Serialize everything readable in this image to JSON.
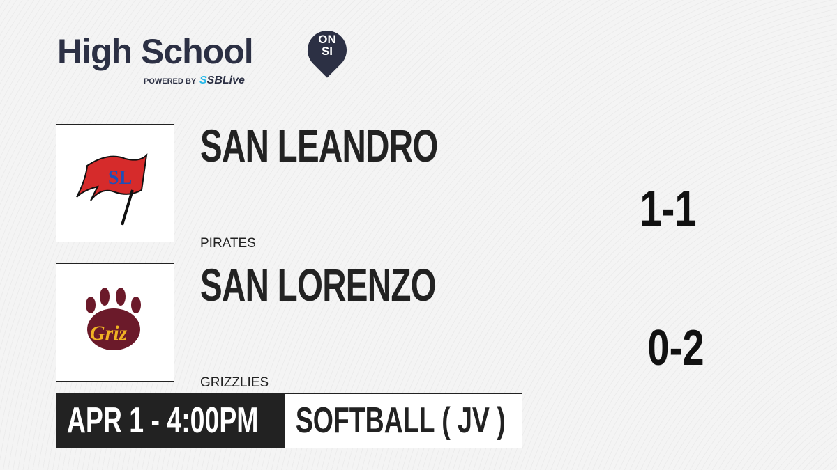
{
  "brand": {
    "title": "High School",
    "badge_top": "ON",
    "badge_bottom": "SI",
    "powered_by": "POWERED BY",
    "partner_prefix": "S",
    "partner": "SBLive"
  },
  "teams": [
    {
      "name": "SAN LEANDRO",
      "mascot": "PIRATES",
      "score": "1-1",
      "logo_icon": "pirate-flag-logo",
      "logo_text": "SL",
      "color": "#d62b2b"
    },
    {
      "name": "SAN LORENZO",
      "mascot": "GRIZZLIES",
      "score": "0-2",
      "logo_icon": "bear-paw-logo",
      "logo_text": "Griz",
      "color": "#6b1a2a"
    }
  ],
  "game": {
    "datetime": "APR 1 - 4:00PM",
    "sport": "SOFTBALL ( JV )"
  }
}
